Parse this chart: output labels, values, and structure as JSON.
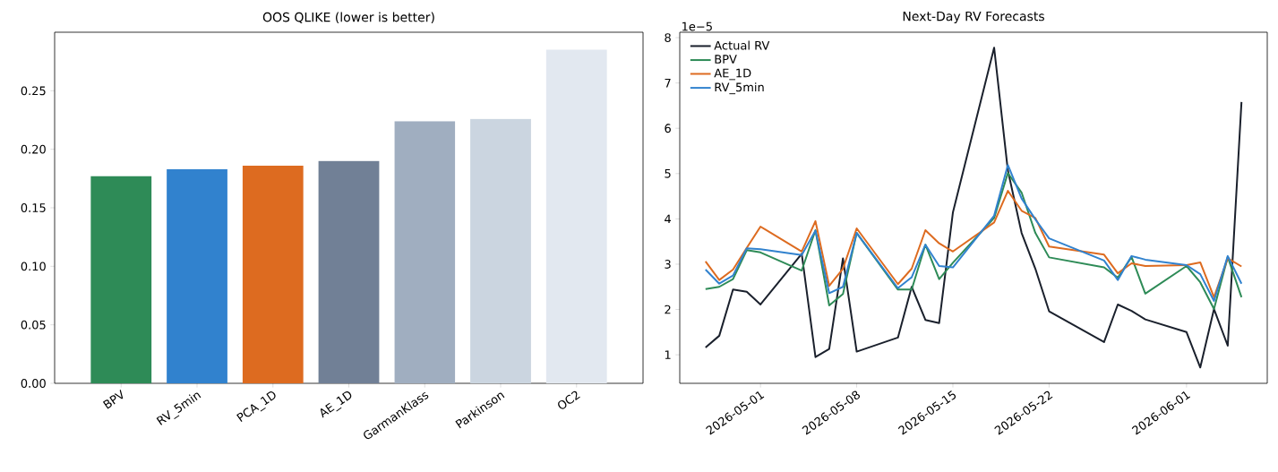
{
  "chart_data": [
    {
      "type": "bar",
      "title": "OOS QLIKE (lower is better)",
      "categories": [
        "BPV",
        "RV_5min",
        "PCA_1D",
        "AE_1D",
        "GarmanKlass",
        "Parkinson",
        "OC2"
      ],
      "values": [
        0.177,
        0.183,
        0.186,
        0.19,
        0.224,
        0.226,
        0.285
      ],
      "colors": [
        "#2e8b57",
        "#3182ce",
        "#dd6b20",
        "#718096",
        "#a0aec0",
        "#cbd5e0",
        "#e2e8f0"
      ],
      "ylim": [
        0,
        0.3
      ],
      "yticks": [
        {
          "value": 0,
          "label": "0.00"
        },
        {
          "value": 0.05,
          "label": "0.05"
        },
        {
          "value": 0.1,
          "label": "0.10"
        },
        {
          "value": 0.15,
          "label": "0.15"
        },
        {
          "value": 0.2,
          "label": "0.20"
        },
        {
          "value": 0.25,
          "label": "0.25"
        }
      ]
    },
    {
      "type": "line",
      "title": "Next-Day RV Forecasts",
      "x": [
        "2026-04-27",
        "2026-04-28",
        "2026-04-29",
        "2026-04-30",
        "2026-05-01",
        "2026-05-04",
        "2026-05-05",
        "2026-05-06",
        "2026-05-07",
        "2026-05-08",
        "2026-05-11",
        "2026-05-12",
        "2026-05-13",
        "2026-05-14",
        "2026-05-15",
        "2026-05-18",
        "2026-05-19",
        "2026-05-20",
        "2026-05-21",
        "2026-05-22",
        "2026-05-26",
        "2026-05-27",
        "2026-05-28",
        "2026-05-29",
        "2026-06-01",
        "2026-06-02",
        "2026-06-03",
        "2026-06-04",
        "2026-06-05"
      ],
      "series": [
        {
          "name": "Actual RV",
          "color": "#1a202c",
          "values": [
            1.16,
            1.42,
            2.44,
            2.39,
            2.11,
            3.23,
            0.95,
            1.13,
            3.13,
            1.07,
            1.38,
            2.5,
            1.77,
            1.7,
            4.14,
            7.78,
            5.07,
            3.69,
            2.9,
            1.96,
            1.28,
            2.11,
            1.97,
            1.78,
            1.5,
            0.72,
            2.01,
            1.2,
            6.58
          ]
        },
        {
          "name": "BPV",
          "color": "#2e8b57",
          "values": [
            2.45,
            2.5,
            2.67,
            3.31,
            3.26,
            2.86,
            3.75,
            2.09,
            2.34,
            3.69,
            2.44,
            2.44,
            3.43,
            2.67,
            3.03,
            4.02,
            5.01,
            4.58,
            3.69,
            3.15,
            2.93,
            2.7,
            3.16,
            2.35,
            2.96,
            2.6,
            2.01,
            3.16,
            2.27
          ]
        },
        {
          "name": "AE_1D",
          "color": "#dd6b20",
          "values": [
            3.06,
            2.65,
            2.88,
            3.36,
            3.83,
            3.28,
            3.95,
            2.52,
            2.9,
            3.79,
            2.56,
            2.9,
            3.75,
            3.46,
            3.28,
            3.92,
            4.62,
            4.18,
            4.02,
            3.39,
            3.21,
            2.8,
            3.02,
            2.96,
            2.98,
            3.04,
            2.27,
            3.13,
            2.95
          ]
        },
        {
          "name": "RV_5min",
          "color": "#3182ce",
          "values": [
            2.88,
            2.57,
            2.75,
            3.35,
            3.33,
            3.2,
            3.74,
            2.36,
            2.5,
            3.69,
            2.47,
            2.71,
            3.43,
            2.96,
            2.93,
            4.07,
            5.19,
            4.45,
            3.99,
            3.57,
            3.08,
            2.65,
            3.18,
            3.1,
            2.98,
            2.78,
            2.19,
            3.18,
            2.57
          ]
        }
      ],
      "xlim": [
        "2026-04-25T03:00",
        "2026-06-06T21:00"
      ],
      "xticks": [
        "2026-05-01",
        "2026-05-08",
        "2026-05-15",
        "2026-05-22",
        "2026-06-01"
      ],
      "ylim": [
        0.37,
        8.12
      ],
      "yticks": [
        1,
        2,
        3,
        4,
        5,
        6,
        7,
        8
      ],
      "annotations": [
        "1e−5"
      ],
      "legend": "top left"
    }
  ]
}
